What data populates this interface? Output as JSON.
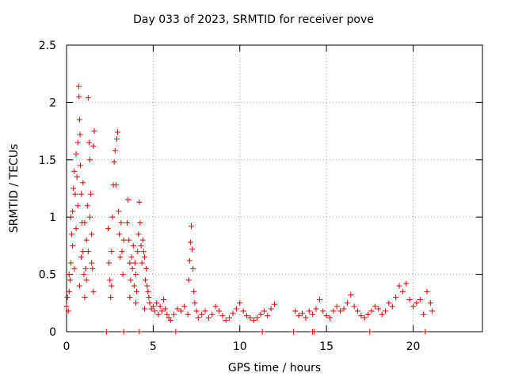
{
  "chart_data": {
    "type": "scatter",
    "title": "Day 033 of 2023, SRMTID for receiver pove",
    "xlabel": "GPS time / hours",
    "ylabel": "SRMTID / TECUs",
    "xlim": [
      0,
      24
    ],
    "ylim": [
      0,
      2.5
    ],
    "xticks": [
      0,
      5,
      10,
      15,
      20
    ],
    "yticks": [
      0,
      0.5,
      1,
      1.5,
      2,
      2.5
    ],
    "ytick_labels": [
      "0",
      "0.5",
      "1",
      "1.5",
      "2",
      "2.5"
    ],
    "grid": true,
    "marker": "+",
    "color": "#dd0000",
    "series": [
      {
        "name": "SRMTID",
        "points": [
          [
            0.0,
            0.22
          ],
          [
            0.05,
            0.3
          ],
          [
            0.1,
            0.18
          ],
          [
            0.15,
            0.35
          ],
          [
            0.2,
            0.45
          ],
          [
            0.25,
            0.6
          ],
          [
            0.3,
            0.85
          ],
          [
            0.35,
            1.05
          ],
          [
            0.4,
            1.25
          ],
          [
            0.45,
            1.4
          ],
          [
            0.5,
            1.2
          ],
          [
            0.55,
            1.55
          ],
          [
            0.6,
            1.35
          ],
          [
            0.65,
            1.65
          ],
          [
            0.7,
            2.14
          ],
          [
            0.72,
            2.05
          ],
          [
            0.75,
            1.85
          ],
          [
            0.78,
            1.72
          ],
          [
            0.8,
            1.45
          ],
          [
            0.85,
            1.2
          ],
          [
            0.9,
            0.95
          ],
          [
            0.95,
            0.7
          ],
          [
            1.0,
            0.5
          ],
          [
            1.05,
            0.3
          ],
          [
            1.1,
            0.55
          ],
          [
            1.15,
            0.8
          ],
          [
            1.2,
            1.1
          ],
          [
            1.25,
            2.04
          ],
          [
            1.3,
            1.65
          ],
          [
            1.35,
            1.5
          ],
          [
            1.4,
            1.2
          ],
          [
            1.45,
            0.85
          ],
          [
            1.5,
            0.55
          ],
          [
            1.55,
            0.35
          ],
          [
            1.6,
            1.75
          ],
          [
            1.55,
            1.62
          ],
          [
            0.35,
            0.75
          ],
          [
            0.45,
            0.55
          ],
          [
            0.55,
            0.9
          ],
          [
            0.65,
            1.1
          ],
          [
            0.75,
            0.4
          ],
          [
            0.85,
            0.65
          ],
          [
            0.95,
            1.3
          ],
          [
            1.05,
            0.95
          ],
          [
            1.15,
            0.45
          ],
          [
            1.25,
            0.7
          ],
          [
            1.35,
            1.0
          ],
          [
            1.45,
            0.6
          ],
          [
            0.25,
            1.0
          ],
          [
            0.15,
            0.5
          ],
          [
            2.4,
            0.9
          ],
          [
            2.45,
            0.6
          ],
          [
            2.5,
            0.45
          ],
          [
            2.55,
            0.3
          ],
          [
            2.6,
            0.7
          ],
          [
            2.65,
            1.0
          ],
          [
            2.7,
            1.28
          ],
          [
            2.75,
            1.48
          ],
          [
            2.8,
            1.58
          ],
          [
            2.85,
            1.28
          ],
          [
            2.9,
            1.68
          ],
          [
            2.95,
            1.74
          ],
          [
            3.0,
            1.05
          ],
          [
            3.05,
            0.85
          ],
          [
            3.1,
            0.65
          ],
          [
            3.15,
            0.95
          ],
          [
            3.2,
            0.7
          ],
          [
            3.25,
            0.5
          ],
          [
            3.3,
            0.8
          ],
          [
            2.6,
            0.4
          ],
          [
            3.5,
            0.95
          ],
          [
            3.55,
            1.15
          ],
          [
            3.6,
            0.8
          ],
          [
            3.65,
            0.6
          ],
          [
            3.7,
            0.45
          ],
          [
            3.75,
            0.65
          ],
          [
            3.8,
            0.55
          ],
          [
            3.85,
            0.75
          ],
          [
            3.9,
            0.4
          ],
          [
            3.95,
            0.6
          ],
          [
            4.0,
            0.5
          ],
          [
            4.05,
            0.35
          ],
          [
            4.1,
            0.7
          ],
          [
            4.15,
            0.85
          ],
          [
            4.2,
            1.13
          ],
          [
            4.25,
            0.95
          ],
          [
            4.3,
            0.75
          ],
          [
            4.35,
            0.6
          ],
          [
            4.4,
            0.8
          ],
          [
            4.45,
            0.7
          ],
          [
            4.5,
            0.65
          ],
          [
            4.55,
            0.45
          ],
          [
            4.6,
            0.55
          ],
          [
            4.65,
            0.4
          ],
          [
            4.7,
            0.35
          ],
          [
            4.75,
            0.3
          ],
          [
            3.65,
            0.3
          ],
          [
            4.0,
            0.25
          ],
          [
            4.5,
            0.2
          ],
          [
            4.8,
            0.25
          ],
          [
            4.9,
            0.2
          ],
          [
            5.0,
            0.22
          ],
          [
            5.1,
            0.18
          ],
          [
            5.2,
            0.25
          ],
          [
            5.3,
            0.15
          ],
          [
            5.4,
            0.22
          ],
          [
            5.5,
            0.18
          ],
          [
            5.6,
            0.28
          ],
          [
            5.7,
            0.2
          ],
          [
            5.8,
            0.15
          ],
          [
            5.9,
            0.12
          ],
          [
            6.0,
            0.1
          ],
          [
            6.2,
            0.15
          ],
          [
            6.4,
            0.2
          ],
          [
            6.6,
            0.18
          ],
          [
            6.8,
            0.22
          ],
          [
            7.0,
            0.15
          ],
          [
            7.05,
            0.45
          ],
          [
            7.1,
            0.62
          ],
          [
            7.15,
            0.78
          ],
          [
            7.2,
            0.92
          ],
          [
            7.25,
            0.72
          ],
          [
            7.3,
            0.55
          ],
          [
            7.35,
            0.35
          ],
          [
            7.4,
            0.25
          ],
          [
            7.5,
            0.18
          ],
          [
            7.6,
            0.12
          ],
          [
            7.8,
            0.15
          ],
          [
            8.0,
            0.18
          ],
          [
            8.2,
            0.12
          ],
          [
            8.4,
            0.15
          ],
          [
            8.6,
            0.22
          ],
          [
            8.8,
            0.18
          ],
          [
            9.0,
            0.14
          ],
          [
            9.2,
            0.1
          ],
          [
            9.4,
            0.12
          ],
          [
            9.6,
            0.16
          ],
          [
            9.8,
            0.2
          ],
          [
            10.0,
            0.25
          ],
          [
            10.2,
            0.18
          ],
          [
            10.4,
            0.14
          ],
          [
            10.6,
            0.12
          ],
          [
            10.8,
            0.1
          ],
          [
            11.0,
            0.12
          ],
          [
            11.2,
            0.15
          ],
          [
            11.4,
            0.18
          ],
          [
            11.6,
            0.14
          ],
          [
            11.8,
            0.2
          ],
          [
            12.0,
            0.24
          ],
          [
            13.2,
            0.18
          ],
          [
            13.4,
            0.14
          ],
          [
            13.6,
            0.16
          ],
          [
            13.8,
            0.12
          ],
          [
            14.0,
            0.18
          ],
          [
            14.2,
            0.15
          ],
          [
            14.4,
            0.2
          ],
          [
            14.6,
            0.28
          ],
          [
            14.8,
            0.18
          ],
          [
            15.0,
            0.14
          ],
          [
            15.2,
            0.12
          ],
          [
            15.4,
            0.18
          ],
          [
            15.6,
            0.22
          ],
          [
            15.8,
            0.18
          ],
          [
            16.0,
            0.2
          ],
          [
            16.2,
            0.25
          ],
          [
            16.4,
            0.32
          ],
          [
            16.6,
            0.22
          ],
          [
            16.8,
            0.18
          ],
          [
            17.0,
            0.14
          ],
          [
            17.2,
            0.12
          ],
          [
            17.4,
            0.15
          ],
          [
            17.6,
            0.18
          ],
          [
            17.8,
            0.22
          ],
          [
            18.0,
            0.2
          ],
          [
            18.2,
            0.15
          ],
          [
            18.4,
            0.18
          ],
          [
            18.6,
            0.25
          ],
          [
            18.8,
            0.22
          ],
          [
            19.0,
            0.3
          ],
          [
            19.2,
            0.4
          ],
          [
            19.4,
            0.35
          ],
          [
            19.6,
            0.42
          ],
          [
            19.8,
            0.28
          ],
          [
            20.0,
            0.22
          ],
          [
            20.2,
            0.25
          ],
          [
            20.4,
            0.28
          ],
          [
            20.6,
            0.15
          ],
          [
            20.8,
            0.35
          ],
          [
            21.0,
            0.25
          ],
          [
            21.1,
            0.18
          ]
        ]
      },
      {
        "name": "zero-markers",
        "points": [
          [
            2.3,
            0
          ],
          [
            3.3,
            0
          ],
          [
            4.2,
            0
          ],
          [
            6.3,
            0
          ],
          [
            11.3,
            0
          ],
          [
            13.1,
            0
          ],
          [
            14.2,
            0
          ],
          [
            14.3,
            0
          ],
          [
            17.5,
            0
          ],
          [
            20.7,
            0
          ]
        ]
      }
    ]
  }
}
